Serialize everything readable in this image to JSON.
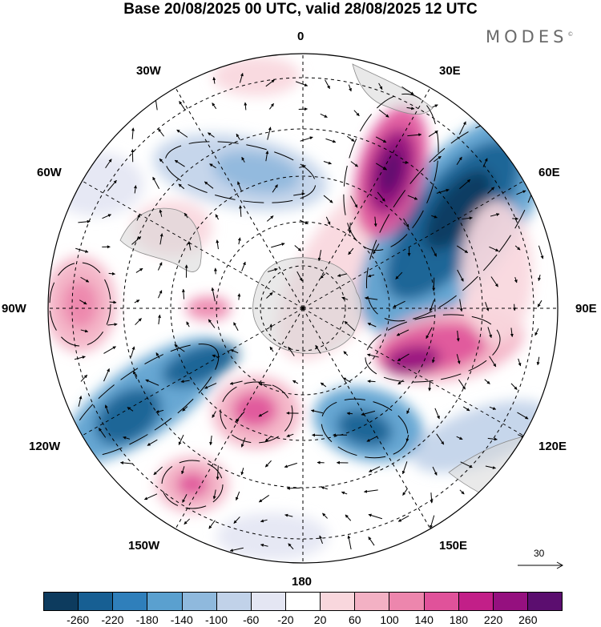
{
  "title": "Base 20/08/2025 00 UTC, valid 28/08/2025 12 UTC",
  "logo": {
    "text": "MODES",
    "mark": "©"
  },
  "longitude_labels": {
    "top": "0",
    "bottom": "180",
    "left": "90W",
    "right": "90E",
    "upper_left_1": "30W",
    "upper_left_2": "60W",
    "upper_right_1": "30E",
    "upper_right_2": "60E",
    "lower_left_1": "120W",
    "lower_left_2": "150W",
    "lower_right_1": "120E",
    "lower_right_2": "150E"
  },
  "vector_reference": {
    "value": "30"
  },
  "colorbar": {
    "colors": [
      "#0d3b5e",
      "#175f93",
      "#2f7fbb",
      "#5aa0cf",
      "#8fb9dd",
      "#c1d2e9",
      "#e4e6f3",
      "#ffffff",
      "#f9d7dd",
      "#f3b1c4",
      "#ed86ad",
      "#e0529a",
      "#c21f88",
      "#95107f",
      "#5b0e6f"
    ],
    "tick_labels": [
      "-260",
      "-220",
      "-180",
      "-140",
      "-100",
      "-60",
      "-20",
      "20",
      "60",
      "100",
      "140",
      "180",
      "220",
      "260"
    ]
  }
}
